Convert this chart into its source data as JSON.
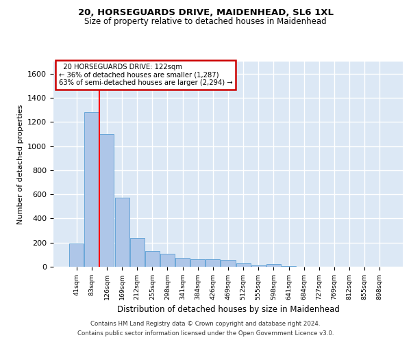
{
  "title1": "20, HORSEGUARDS DRIVE, MAIDENHEAD, SL6 1XL",
  "title2": "Size of property relative to detached houses in Maidenhead",
  "xlabel": "Distribution of detached houses by size in Maidenhead",
  "ylabel": "Number of detached properties",
  "categories": [
    "41sqm",
    "83sqm",
    "126sqm",
    "169sqm",
    "212sqm",
    "255sqm",
    "298sqm",
    "341sqm",
    "384sqm",
    "426sqm",
    "469sqm",
    "512sqm",
    "555sqm",
    "598sqm",
    "641sqm",
    "684sqm",
    "727sqm",
    "769sqm",
    "812sqm",
    "855sqm",
    "898sqm"
  ],
  "values": [
    190,
    1280,
    1100,
    570,
    240,
    130,
    110,
    75,
    65,
    60,
    55,
    30,
    10,
    20,
    5,
    0,
    0,
    0,
    0,
    0,
    0
  ],
  "bar_color": "#aec6e8",
  "bar_edge_color": "#5a9fd4",
  "background_color": "#dce8f5",
  "grid_color": "#ffffff",
  "red_line_x": 1.52,
  "annotation_text": "  20 HORSEGUARDS DRIVE: 122sqm  \n← 36% of detached houses are smaller (1,287)\n63% of semi-detached houses are larger (2,294) →",
  "annotation_box_color": "#ffffff",
  "annotation_box_edge": "#cc0000",
  "ylim": [
    0,
    1700
  ],
  "yticks": [
    0,
    200,
    400,
    600,
    800,
    1000,
    1200,
    1400,
    1600
  ],
  "footer1": "Contains HM Land Registry data © Crown copyright and database right 2024.",
  "footer2": "Contains public sector information licensed under the Open Government Licence v3.0."
}
